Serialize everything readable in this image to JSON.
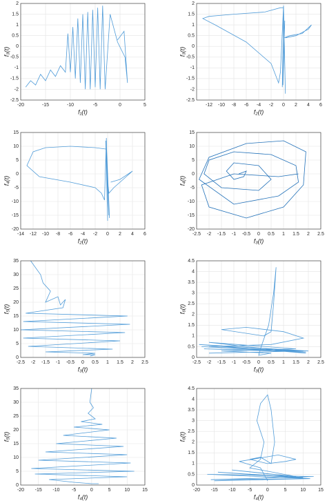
{
  "chart_data": [
    {
      "type": "line",
      "xlabel": "f₁(t)",
      "ylabel": "f₃(t)",
      "color": "#4f9bd8",
      "grid": true,
      "xlim": [
        -20,
        5
      ],
      "xticks": [
        -20,
        -15,
        -10,
        -5,
        0,
        5
      ],
      "ylim": [
        -2.5,
        2
      ],
      "yticks": [
        -2.5,
        -2,
        -1.5,
        -1,
        -0.5,
        0,
        0.5,
        1,
        1.5,
        2
      ],
      "x": [
        -19,
        -18,
        -17,
        -16,
        -15,
        -14,
        -13,
        -12,
        -11,
        -10.5,
        -10,
        -9.5,
        -9,
        -8.5,
        -8,
        -7.5,
        -7,
        -6.5,
        -6,
        -5.5,
        -5,
        -4.5,
        -4,
        -3.5,
        -3,
        -2,
        -0.5,
        1,
        1.5,
        0.8,
        -0.5
      ],
      "values": [
        -1.9,
        -1.6,
        -1.8,
        -1.3,
        -1.6,
        -1.1,
        -1.4,
        -0.9,
        -1.2,
        0.6,
        -1.2,
        0.9,
        -1.5,
        1.3,
        -1.7,
        1.5,
        -2,
        1.6,
        -2,
        1.7,
        -1.9,
        1.8,
        -2,
        1.9,
        -2,
        1.5,
        0.2,
        -0.5,
        -1.7,
        0.7,
        0.3
      ]
    },
    {
      "type": "line",
      "xlabel": "f₂(t)",
      "ylabel": "f₃(t)",
      "color": "#4f9bd8",
      "grid": true,
      "xlim": [
        -14,
        6
      ],
      "xticks": [
        -12,
        -10,
        -8,
        -6,
        -4,
        -2,
        0,
        2,
        4,
        6
      ],
      "ylim": [
        -2.5,
        2
      ],
      "yticks": [
        -2.5,
        -2,
        -1.5,
        -1,
        -0.5,
        0,
        0.5,
        1,
        1.5,
        2
      ],
      "x": [
        0,
        -0.5,
        -3,
        -8,
        -12,
        -13,
        -11,
        -6,
        -2,
        -0.8,
        -0.5,
        0,
        0.3,
        0,
        -0.2,
        0.2,
        -0.1,
        0.1,
        1,
        3,
        4.5,
        4,
        2,
        0.3
      ],
      "values": [
        1.8,
        1.8,
        1.6,
        1.5,
        1.4,
        1.3,
        1.0,
        0.2,
        -0.8,
        -1.7,
        -1.2,
        1.9,
        -2.2,
        1.5,
        -1.9,
        1.2,
        -1.8,
        0.4,
        0.5,
        0.6,
        1.0,
        0.8,
        0.5,
        0.4
      ]
    },
    {
      "type": "line",
      "xlabel": "f₂(t)",
      "ylabel": "f₄(t)",
      "color": "#4f9bd8",
      "grid": true,
      "xlim": [
        -14,
        6
      ],
      "xticks": [
        -14,
        -12,
        -10,
        -8,
        -6,
        -4,
        -2,
        0,
        2,
        4,
        6
      ],
      "ylim": [
        -20,
        15
      ],
      "yticks": [
        -20,
        -15,
        -10,
        -5,
        0,
        5,
        10,
        15
      ],
      "x": [
        -0.3,
        -2,
        -6,
        -10,
        -12,
        -13,
        -11,
        -6,
        -2,
        -1,
        -0.5,
        -0.2,
        0,
        -0.3,
        0.2,
        -0.2,
        0.3,
        -0.1,
        0.2,
        1,
        3,
        4,
        2,
        0.5
      ],
      "values": [
        9,
        9.5,
        10,
        9.5,
        8,
        3,
        -1,
        -3,
        -5,
        -7,
        -9.5,
        13,
        -17,
        12,
        -15,
        11,
        -16,
        0,
        -7,
        -5,
        -1,
        1,
        -2,
        -3
      ]
    },
    {
      "type": "line",
      "xlabel": "f₃(t)",
      "ylabel": "f₄(t)",
      "color": "#1f6fb8",
      "grid": true,
      "xlim": [
        -2.5,
        2.5
      ],
      "xticks": [
        -2.5,
        -2,
        -1.5,
        -1,
        -0.5,
        0,
        0.5,
        1,
        1.5,
        2,
        2.5
      ],
      "ylim": [
        -20,
        15
      ],
      "yticks": [
        -20,
        -15,
        -10,
        -5,
        0,
        5,
        10,
        15
      ],
      "x": [
        -0.8,
        -0.5,
        -0.6,
        -1,
        -1.3,
        -1,
        0,
        0.5,
        0,
        -1.5,
        -2.2,
        -2,
        -1,
        0.5,
        1.5,
        1.6,
        0.8,
        -1,
        -2.4,
        -2,
        -0.5,
        1,
        1.9,
        1.8,
        1,
        -0.5,
        -2,
        -2.3,
        -1,
        0.8,
        1.6
      ],
      "values": [
        0,
        1,
        -1,
        -2,
        1,
        4,
        3,
        -2,
        -6,
        -5,
        0,
        5,
        8,
        7,
        3,
        -3,
        -8,
        -11,
        -2,
        6,
        11,
        12,
        8,
        -4,
        -12,
        -16,
        -12,
        -4,
        0,
        -1,
        0
      ]
    },
    {
      "type": "line",
      "xlabel": "f₃(t)",
      "ylabel": "f₅(t)",
      "color": "#4f9bd8",
      "grid": true,
      "xlim": [
        -2.5,
        2.5
      ],
      "xticks": [
        -2.5,
        -2,
        -1.5,
        -1,
        -0.5,
        0,
        0.5,
        1,
        1.5,
        2,
        2.5
      ],
      "ylim": [
        0,
        35
      ],
      "yticks": [
        0,
        5,
        10,
        15,
        20,
        25,
        30,
        35
      ],
      "x": [
        -2.1,
        -1.7,
        -1.6,
        -1.3,
        -1.5,
        -1,
        -0.9,
        -0.7,
        -0.8,
        -2.3,
        1.8,
        -2.4,
        1.9,
        -2.5,
        1.7,
        -2.4,
        1.5,
        -2.2,
        1.2,
        -1.5,
        0.5,
        0,
        0.5,
        0.3
      ],
      "values": [
        35,
        30,
        27,
        24,
        20,
        22,
        19,
        21,
        18,
        16,
        15,
        13,
        12,
        10,
        9,
        7,
        6,
        4,
        3,
        2,
        1.5,
        1,
        1,
        0.5
      ]
    },
    {
      "type": "line",
      "xlabel": "f₃(t)",
      "ylabel": "f₆(t)",
      "color": "#4f9bd8",
      "grid": true,
      "xlim": [
        -2.5,
        2.5
      ],
      "xticks": [
        -2.5,
        -2,
        -1.5,
        -1,
        -0.5,
        0,
        0.5,
        1,
        1.5,
        2,
        2.5
      ],
      "ylim": [
        0,
        4.5
      ],
      "yticks": [
        0,
        0.5,
        1,
        1.5,
        2,
        2.5,
        3,
        3.5,
        4,
        4.5
      ],
      "x": [
        -2,
        1.8,
        -2.2,
        1.9,
        -2.3,
        2,
        -2.4,
        1.9,
        -2,
        1.5,
        -1.5,
        0.5,
        0,
        0.1,
        0.4,
        0.6,
        0.7,
        0.6,
        0.5,
        0.2,
        -1.5,
        -0.5,
        1,
        1.8,
        0.5,
        -2
      ],
      "values": [
        0.2,
        0.3,
        0.4,
        0.25,
        0.5,
        0.3,
        0.6,
        0.2,
        0.7,
        0.4,
        0.3,
        0.2,
        0.1,
        0.5,
        1.5,
        3,
        4.2,
        2.5,
        1.2,
        1.0,
        1.3,
        1.4,
        1.2,
        0.9,
        0.6,
        0.5
      ]
    },
    {
      "type": "line",
      "xlabel": "f₄(t)",
      "ylabel": "f₅(t)",
      "color": "#4f9bd8",
      "grid": true,
      "xlim": [
        -20,
        15
      ],
      "xticks": [
        -20,
        -15,
        -10,
        -5,
        0,
        5,
        10,
        15
      ],
      "ylim": [
        0,
        35
      ],
      "yticks": [
        0,
        5,
        10,
        15,
        20,
        25,
        30,
        35
      ],
      "x": [
        0,
        -0.5,
        0.5,
        -1,
        1,
        -3,
        3,
        -5,
        5,
        -8,
        7,
        -10,
        9,
        -13,
        10,
        -15,
        11,
        -17,
        12,
        -16,
        10,
        -12,
        -5,
        0,
        2
      ],
      "values": [
        35,
        30,
        28,
        26,
        24,
        23,
        22,
        21,
        20,
        18,
        17,
        15,
        14,
        12,
        11,
        9,
        8,
        6,
        5,
        4,
        3,
        2,
        1,
        0.5,
        0.5
      ]
    },
    {
      "type": "line",
      "xlabel": "f₄(t)",
      "ylabel": "f₆(t)",
      "color": "#4f9bd8",
      "grid": true,
      "xlim": [
        -20,
        15
      ],
      "xticks": [
        -20,
        -15,
        -10,
        -5,
        0,
        5,
        10,
        15
      ],
      "ylim": [
        0,
        4.5
      ],
      "yticks": [
        0,
        0.5,
        1,
        1.5,
        2,
        2.5,
        3,
        3.5,
        4,
        4.5
      ],
      "x": [
        -15,
        12,
        -16,
        13,
        -17,
        12,
        -14,
        10,
        -10,
        8,
        -5,
        -2,
        -1,
        -3,
        -2,
        0,
        1,
        2,
        1,
        -2,
        -5,
        0,
        5,
        8,
        3,
        -8,
        -2,
        0
      ],
      "values": [
        0.2,
        0.3,
        0.25,
        0.4,
        0.5,
        0.3,
        0.6,
        0.35,
        0.7,
        0.4,
        0.8,
        1.2,
        2,
        3,
        3.8,
        4.2,
        3.5,
        2,
        1,
        1.3,
        1.2,
        1.0,
        1.1,
        1.2,
        1.4,
        1.1,
        0.8,
        0.2
      ]
    }
  ]
}
